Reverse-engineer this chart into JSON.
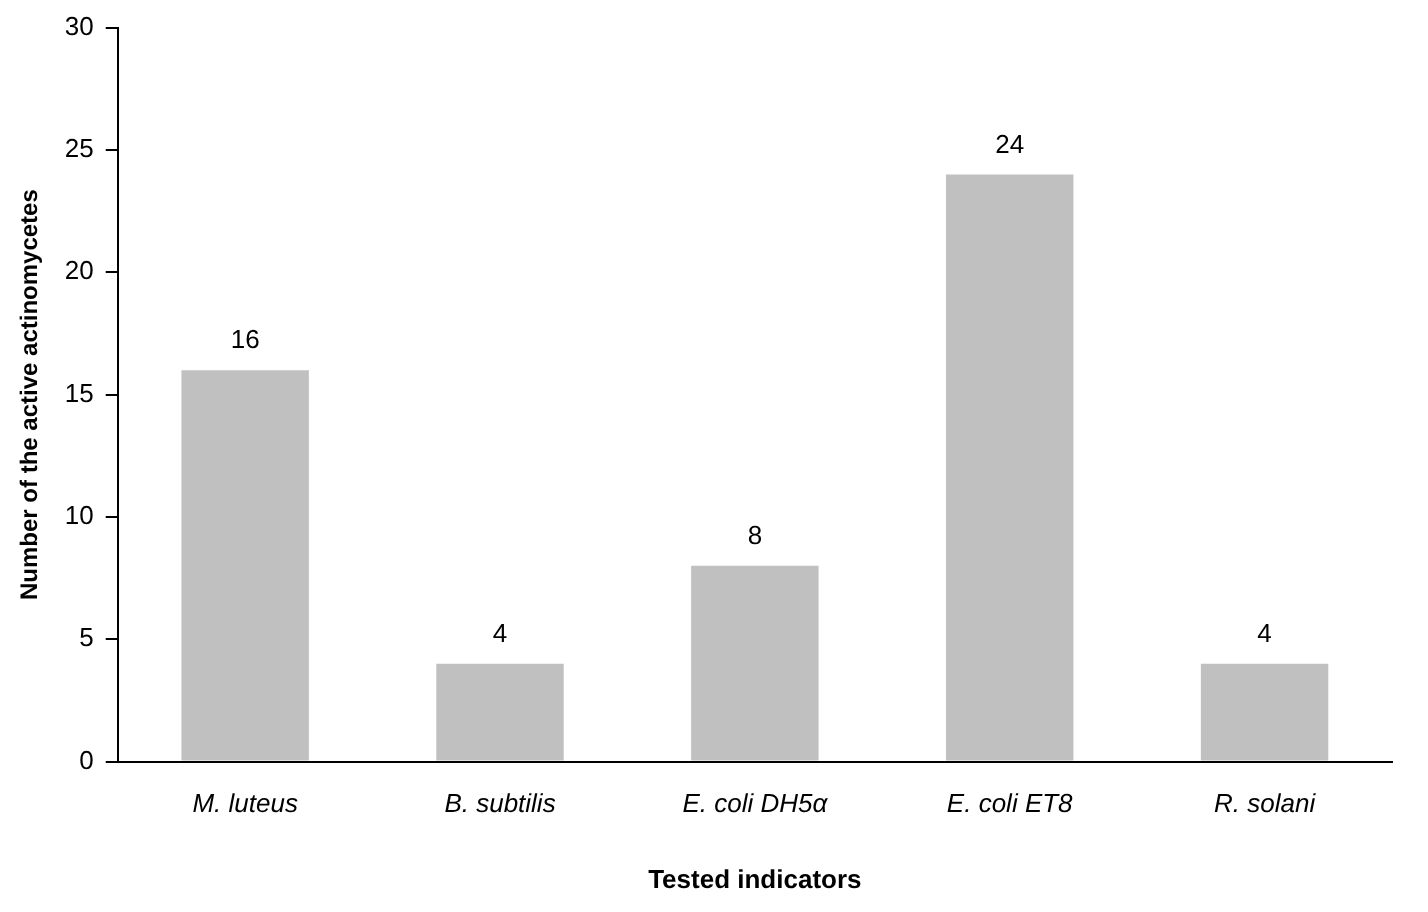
{
  "chart_data": {
    "type": "bar",
    "xlabel": "Tested indicators",
    "ylabel": "Number of the active actinomycetes",
    "categories": [
      "M. luteus",
      "B. subtilis",
      "E. coli DH5α",
      "E. coli ET8",
      "R. solani"
    ],
    "values": [
      16,
      4,
      8,
      24,
      4
    ],
    "color": "#c0c0c0",
    "ylim": [
      0,
      30
    ],
    "yticks": [
      0,
      5,
      10,
      15,
      20,
      25,
      30
    ],
    "grid": false,
    "data_labels": true
  }
}
